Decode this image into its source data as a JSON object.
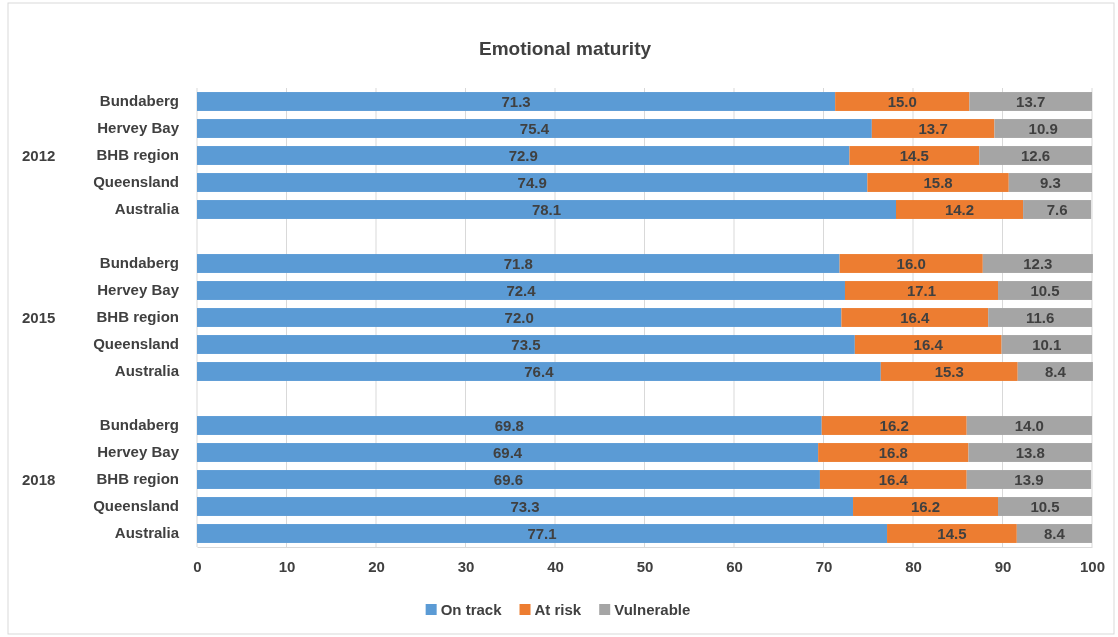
{
  "chart_data": {
    "type": "bar",
    "title": "Emotional maturity",
    "orientation": "horizontal",
    "stacked": true,
    "categories": [
      "Bundaberg",
      "Hervey Bay",
      "BHB region",
      "Queensland",
      "Australia",
      null,
      "Bundaberg",
      "Hervey Bay",
      "BHB region",
      "Queensland",
      "Australia",
      null,
      "Bundaberg",
      "Hervey Bay",
      "BHB region",
      "Queensland",
      "Australia"
    ],
    "series": [
      {
        "name": "On track",
        "color": "#5b9bd5",
        "values": [
          71.3,
          75.4,
          72.9,
          74.9,
          78.1,
          null,
          71.8,
          72.4,
          72.0,
          73.5,
          76.4,
          null,
          69.8,
          69.4,
          69.6,
          73.3,
          77.1
        ],
        "value_labels": [
          "71.3",
          "75.4",
          "72.9",
          "74.9",
          "78.1",
          null,
          "71.8",
          "72.4",
          "72.0",
          "73.5",
          "76.4",
          null,
          "69.8",
          "69.4",
          "69.6",
          "73.3",
          "77.1"
        ]
      },
      {
        "name": "At risk",
        "color": "#ed7d31",
        "values": [
          15.0,
          13.7,
          14.5,
          15.8,
          14.2,
          null,
          16.0,
          17.1,
          16.4,
          16.4,
          15.3,
          null,
          16.2,
          16.8,
          16.4,
          16.2,
          14.5
        ],
        "value_labels": [
          "15.0",
          "13.7",
          "14.5",
          "15.8",
          "14.2",
          null,
          "16.0",
          "17.1",
          "16.4",
          "16.4",
          "15.3",
          null,
          "16.2",
          "16.8",
          "16.4",
          "16.2",
          "14.5"
        ]
      },
      {
        "name": "Vulnerable",
        "color": "#a5a5a5",
        "values": [
          13.7,
          10.9,
          12.6,
          9.3,
          7.6,
          null,
          12.3,
          10.5,
          11.6,
          10.1,
          8.4,
          null,
          14.0,
          13.8,
          13.9,
          10.5,
          8.4
        ],
        "value_labels": [
          "13.7",
          "10.9",
          "12.6",
          "9.3",
          "7.6",
          null,
          "12.3",
          "10.5",
          "11.6",
          "10.1",
          "8.4",
          null,
          "14.0",
          "13.8",
          "13.9",
          "10.5",
          "8.4"
        ]
      }
    ],
    "annotations": [
      "2012",
      "2015",
      "2018"
    ],
    "xlim": [
      0,
      100
    ],
    "xticks": [
      0,
      10,
      20,
      30,
      40,
      50,
      60,
      70,
      80,
      90,
      100
    ],
    "grid": "x",
    "legend": "bottom"
  }
}
